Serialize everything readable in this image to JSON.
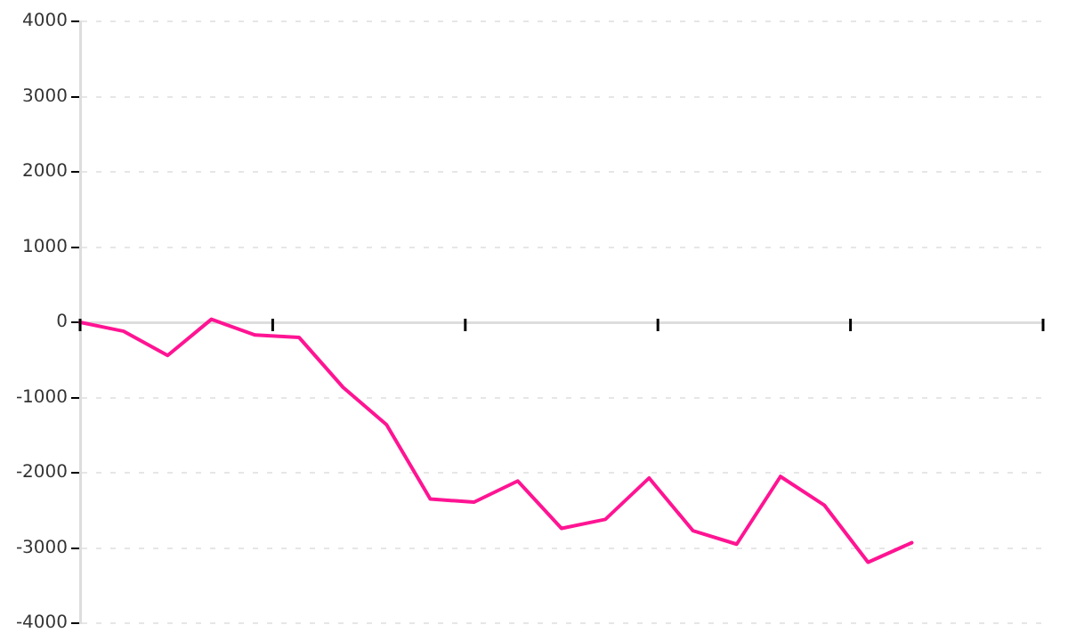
{
  "chart_data": {
    "type": "line",
    "categories": [
      null,
      null,
      null,
      null,
      null,
      null,
      null,
      null,
      null,
      null,
      null,
      null,
      null,
      null,
      null,
      null,
      null,
      null,
      null,
      null,
      null,
      null,
      null
    ],
    "series": [
      {
        "color": "#ff1493",
        "values": [
          0,
          -120,
          -440,
          40,
          -170,
          -200,
          -860,
          -1360,
          -2350,
          -2390,
          -2110,
          -2740,
          -2620,
          -2070,
          -2770,
          -2950,
          -2050,
          -2430,
          -3190,
          -2930,
          null,
          null,
          null
        ]
      }
    ],
    "ylim": [
      -4000,
      4000
    ],
    "yticks": [
      -4000,
      -3000,
      -2000,
      -1000,
      0,
      1000,
      2000,
      3000,
      4000
    ],
    "grid": "y",
    "tick_labels": "y",
    "marker": "none",
    "line_style": "solid"
  }
}
